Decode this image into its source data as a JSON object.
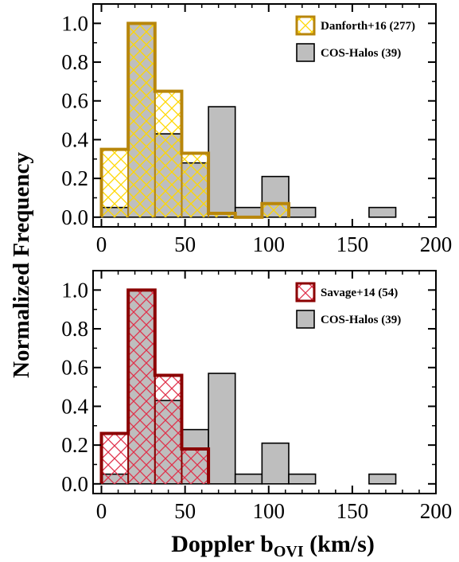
{
  "figure": {
    "ylabel": "Normalized Frequency",
    "xlabel_main": "Doppler b",
    "xlabel_sub": "OVI",
    "xlabel_unit": " (km/s)"
  },
  "chart_data": [
    {
      "type": "bar",
      "xlim": [
        -5,
        200
      ],
      "ylim": [
        -0.05,
        1.1
      ],
      "xticks": [
        "0",
        "50",
        "100",
        "150",
        "200"
      ],
      "yticks": [
        "0.0",
        "0.2",
        "0.4",
        "0.6",
        "0.8",
        "1.0"
      ],
      "legend_position": "top-right",
      "bin_edges": [
        0,
        16,
        32,
        48,
        64,
        80,
        96,
        112,
        128,
        144,
        160,
        176
      ],
      "series": [
        {
          "name": "COS-Halos (39)",
          "style": "filled",
          "color": "#bebebe",
          "values": [
            0.05,
            1.0,
            0.43,
            0.28,
            0.57,
            0.05,
            0.21,
            0.05,
            0.0,
            0.0,
            0.05
          ]
        },
        {
          "name": "Danforth+16 (277)",
          "style": "hatched",
          "color": "#b8860b",
          "hatch_color": "#ffd700",
          "values": [
            0.35,
            1.0,
            0.65,
            0.33,
            0.02,
            0.0,
            0.07,
            0.0,
            0.0,
            0.0,
            0.0
          ]
        }
      ]
    },
    {
      "type": "bar",
      "xlim": [
        -5,
        200
      ],
      "ylim": [
        -0.05,
        1.1
      ],
      "xticks": [
        "0",
        "50",
        "100",
        "150",
        "200"
      ],
      "yticks": [
        "0.0",
        "0.2",
        "0.4",
        "0.6",
        "0.8",
        "1.0"
      ],
      "legend_position": "top-right",
      "bin_edges": [
        0,
        16,
        32,
        48,
        64,
        80,
        96,
        112,
        128,
        144,
        160,
        176
      ],
      "series": [
        {
          "name": "COS-Halos (39)",
          "style": "filled",
          "color": "#bebebe",
          "values": [
            0.05,
            1.0,
            0.43,
            0.28,
            0.57,
            0.05,
            0.21,
            0.05,
            0.0,
            0.0,
            0.05
          ]
        },
        {
          "name": "Savage+14 (54)",
          "style": "hatched",
          "color": "#8b0000",
          "hatch_color": "#e0314b",
          "values": [
            0.26,
            1.0,
            0.56,
            0.18,
            0.0,
            0.0,
            0.0,
            0.0,
            0.0,
            0.0,
            0.0
          ]
        }
      ]
    }
  ]
}
